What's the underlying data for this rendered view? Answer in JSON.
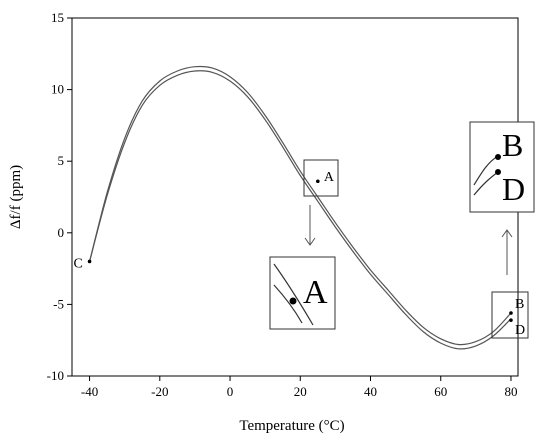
{
  "chart_data": {
    "type": "line",
    "title": "",
    "xlabel": "Temperature (°C)",
    "ylabel": "Δf/f (ppm)",
    "xlim": [
      -45,
      82
    ],
    "ylim": [
      -10,
      15
    ],
    "xticks": [
      -40,
      -20,
      0,
      20,
      40,
      60,
      80
    ],
    "yticks": [
      -10,
      -5,
      0,
      5,
      10,
      15
    ],
    "grid": false,
    "legend": "none",
    "line_color": "#555555",
    "series": [
      {
        "x": [
          -40,
          -35,
          -30,
          -25,
          -20,
          -15,
          -10,
          -5,
          0,
          5,
          10,
          15,
          20,
          25,
          30,
          35,
          40,
          45,
          50,
          55,
          60,
          65,
          70,
          75,
          80
        ],
        "y": [
          -2,
          2.6,
          6.3,
          8.9,
          10.3,
          11.0,
          11.3,
          11.2,
          10.6,
          9.5,
          7.9,
          6.0,
          4.0,
          2.2,
          0.4,
          -1.3,
          -2.9,
          -4.3,
          -5.7,
          -6.9,
          -7.7,
          -8.1,
          -7.9,
          -7.2,
          -6.0
        ]
      },
      {
        "x": [
          -40,
          -35,
          -30,
          -25,
          -20,
          -15,
          -10,
          -5,
          0,
          5,
          10,
          15,
          20,
          25,
          30,
          35,
          40,
          45,
          50,
          55,
          60,
          65,
          70,
          75,
          80
        ],
        "y": [
          -2,
          2.8,
          6.6,
          9.2,
          10.6,
          11.3,
          11.6,
          11.5,
          10.9,
          9.8,
          8.2,
          6.3,
          4.3,
          2.5,
          0.7,
          -1.0,
          -2.6,
          -4.0,
          -5.4,
          -6.6,
          -7.4,
          -7.8,
          -7.6,
          -6.9,
          -5.6
        ]
      }
    ],
    "points": [
      {
        "label": "A",
        "x": 25,
        "y": 3.6
      },
      {
        "label": "B",
        "x": 80,
        "y": -5.6
      },
      {
        "label": "C",
        "x": -40,
        "y": -2
      },
      {
        "label": "D",
        "x": 80,
        "y": -6.1
      }
    ],
    "insets": [
      {
        "label": "A"
      },
      {
        "label": "B",
        "label2": "D"
      }
    ]
  }
}
